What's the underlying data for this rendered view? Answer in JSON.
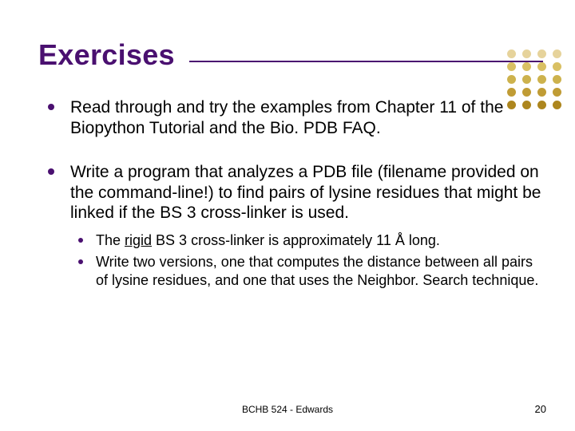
{
  "title": "Exercises",
  "title_color": "#4a1070",
  "bullets": [
    {
      "text": "Read through and try the examples from Chapter 11 of the Biopython Tutorial and the Bio. PDB FAQ."
    },
    {
      "text": "Write a program that analyzes a PDB file (filename provided on the command-line!) to find pairs of lysine residues that might be linked if the BS 3 cross-linker is used.",
      "sub": [
        {
          "pre": "The ",
          "u": "rigid",
          "post": " BS 3 cross-linker is approximately 11 Å long."
        },
        {
          "pre": "Write two versions, one that computes the distance between all pairs of lysine residues, and one that uses the Neighbor. Search technique.",
          "u": "",
          "post": ""
        }
      ]
    }
  ],
  "footer": "BCHB 524 - Edwards",
  "page_number": "20",
  "dots": [
    "#e6d39b",
    "#e6d39b",
    "#e6d39b",
    "#e6d39b",
    "#d9c063",
    "#d9c063",
    "#d9c063",
    "#d9c063",
    "#cdb24d",
    "#cdb24d",
    "#cdb24d",
    "#cdb24d",
    "#c09c35",
    "#c09c35",
    "#c09c35",
    "#c09c35",
    "#ad861e",
    "#ad861e",
    "#ad861e",
    "#ad861e"
  ],
  "text_fontsize_lvl1": 21,
  "text_fontsize_lvl2": 18,
  "title_fontsize": 36,
  "background_color": "#ffffff",
  "bullet_color": "#4a1070"
}
